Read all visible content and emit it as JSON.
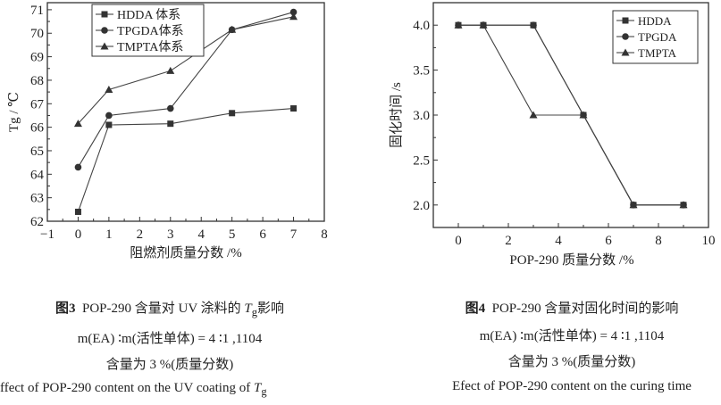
{
  "chart_data": [
    {
      "type": "line",
      "title": "",
      "xlabel": "阻燃剂质量分数 /%",
      "ylabel": "Tg / ℃",
      "ylabel_main": "T",
      "ylabel_sub": "g",
      "ylabel_unit": " / ℃",
      "xlim": [
        -1,
        8
      ],
      "ylim": [
        62,
        71.3
      ],
      "xticks": [
        -1,
        0,
        1,
        2,
        3,
        4,
        5,
        6,
        7,
        8
      ],
      "yticks": [
        62,
        63,
        64,
        65,
        66,
        67,
        68,
        69,
        70,
        71
      ],
      "grid": false,
      "legend_position": "top-left",
      "x": [
        0,
        1,
        3,
        5,
        7
      ],
      "series": [
        {
          "name": "HDDA 体系",
          "marker": "square",
          "values": [
            62.4,
            66.1,
            66.15,
            66.6,
            66.8
          ]
        },
        {
          "name": "TPGDA体系",
          "marker": "circle",
          "values": [
            64.3,
            66.5,
            66.8,
            70.15,
            70.9
          ]
        },
        {
          "name": "TMPTA体系",
          "marker": "triangle",
          "values": [
            66.15,
            67.6,
            68.4,
            70.15,
            70.7
          ]
        }
      ]
    },
    {
      "type": "line",
      "title": "",
      "xlabel": "POP-290 质量分数 /%",
      "ylabel": "固化时间 /s",
      "xlim": [
        -1,
        10
      ],
      "ylim": [
        1.75,
        4.25
      ],
      "xticks": [
        0,
        2,
        4,
        6,
        8,
        10
      ],
      "yticks": [
        2.0,
        2.5,
        3.0,
        3.5,
        4.0
      ],
      "grid": false,
      "legend_position": "top-right",
      "x": [
        0,
        1,
        3,
        5,
        7,
        9
      ],
      "series": [
        {
          "name": "HDDA",
          "marker": "square",
          "values": [
            4,
            4,
            4,
            3,
            2,
            2
          ]
        },
        {
          "name": "TPGDA",
          "marker": "circle",
          "values": [
            4,
            4,
            4,
            3,
            2,
            2
          ]
        },
        {
          "name": "TMPTA",
          "marker": "triangle",
          "values": [
            4,
            4,
            3,
            3,
            2,
            2
          ]
        }
      ]
    }
  ],
  "captions": {
    "fig3": {
      "label": "图3",
      "title_a": "POP-290 含量对 UV 涂料的 ",
      "title_t": "T",
      "title_g": "g",
      "title_b": "影响",
      "line2": "m(EA) ∶m(活性单体) = 4 ∶1 ,1104",
      "line3": "含量为 3 %(质量分数)",
      "english_a": "ffect of POP-290 content on the UV coating of ",
      "english_t": "T",
      "english_g": "g"
    },
    "fig4": {
      "label": "图4",
      "title": "POP-290 含量对固化时间的影响",
      "line2": "m(EA) ∶m(活性单体) = 4 ∶1 ,1104",
      "line3": "含量为 3 %(质量分数)",
      "english": "Efect of POP-290 content on the curing time"
    }
  }
}
